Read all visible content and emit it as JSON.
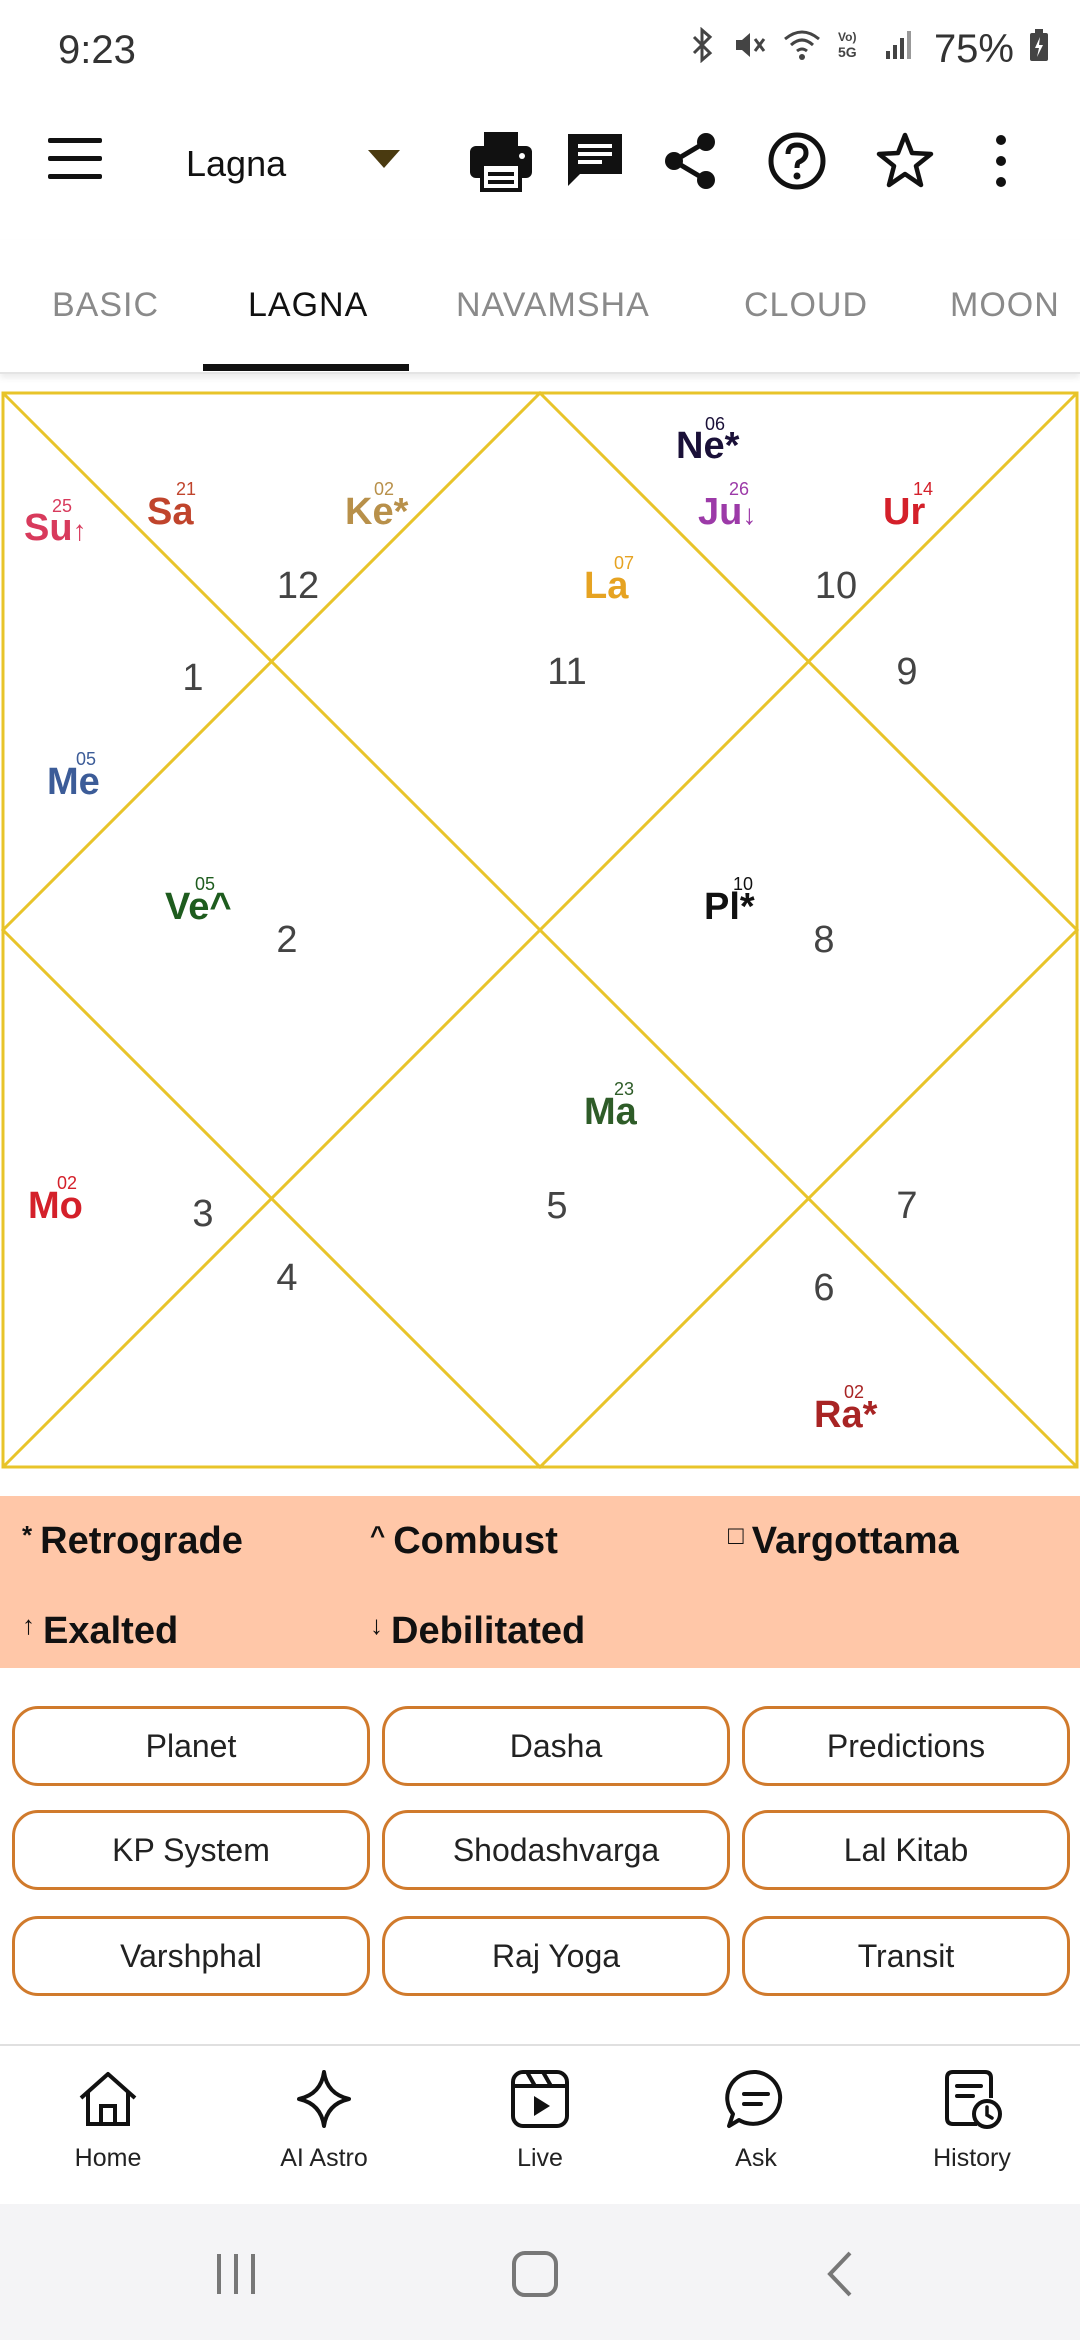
{
  "status": {
    "time": "9:23",
    "battery": "75%"
  },
  "toolbar": {
    "chart_selector": "Lagna",
    "icons": [
      "print-icon",
      "message-icon",
      "share-icon",
      "help-icon",
      "star-icon",
      "more-icon"
    ]
  },
  "tabs": [
    {
      "label": "BASIC"
    },
    {
      "label": "LAGNA"
    },
    {
      "label": "NAVAMSHA"
    },
    {
      "label": "CLOUD"
    },
    {
      "label": "MOON"
    }
  ],
  "chart": {
    "line_color": "#e8c42a",
    "houses": [
      "12",
      "1",
      "11",
      "10",
      "9",
      "2",
      "8",
      "3",
      "4",
      "5",
      "7",
      "6"
    ],
    "planets": {
      "su": {
        "name": "Su",
        "mark": "↑",
        "deg": "25",
        "color": "#d83a5c"
      },
      "sa": {
        "name": "Sa",
        "deg": "21",
        "color": "#c0442c"
      },
      "ke": {
        "name": "Ke*",
        "deg": "02",
        "color": "#b8904a"
      },
      "ne": {
        "name": "Ne*",
        "deg": "06",
        "color": "#1a1038"
      },
      "ju": {
        "name": "Ju",
        "mark": "↓",
        "deg": "26",
        "color": "#9c3aa8"
      },
      "ur": {
        "name": "Ur",
        "deg": "14",
        "color": "#d4202a"
      },
      "la": {
        "name": "La",
        "deg": "07",
        "color": "#e6a322"
      },
      "me": {
        "name": "Me",
        "deg": "05",
        "color": "#3c5c98"
      },
      "ve": {
        "name": "Ve^",
        "deg": "05",
        "color": "#1e5c1e"
      },
      "pl": {
        "name": "Pl*",
        "deg": "10",
        "color": "#111111"
      },
      "ma": {
        "name": "Ma",
        "deg": "23",
        "color": "#2e5c28"
      },
      "mo": {
        "name": "Mo",
        "deg": "02",
        "color": "#d4202a"
      },
      "ra": {
        "name": "Ra*",
        "deg": "02",
        "color": "#a82424"
      }
    }
  },
  "legend": {
    "retrograde": {
      "sym": "*",
      "label": "Retrograde"
    },
    "combust": {
      "sym": "^",
      "label": "Combust"
    },
    "vargottama": {
      "sym": "□",
      "label": "Vargottama"
    },
    "exalted": {
      "sym": "↑",
      "label": "Exalted"
    },
    "debilitated": {
      "sym": "↓",
      "label": "Debilitated"
    }
  },
  "buttons": [
    "Planet",
    "Dasha",
    "Predictions",
    "KP System",
    "Shodashvarga",
    "Lal Kitab",
    "Varshphal",
    "Raj Yoga",
    "Transit"
  ],
  "bottom_nav": [
    {
      "label": "Home"
    },
    {
      "label": "AI Astro"
    },
    {
      "label": "Live"
    },
    {
      "label": "Ask"
    },
    {
      "label": "History"
    }
  ],
  "accent": "#d07a2c",
  "legend_bg": "#ffc7a8"
}
